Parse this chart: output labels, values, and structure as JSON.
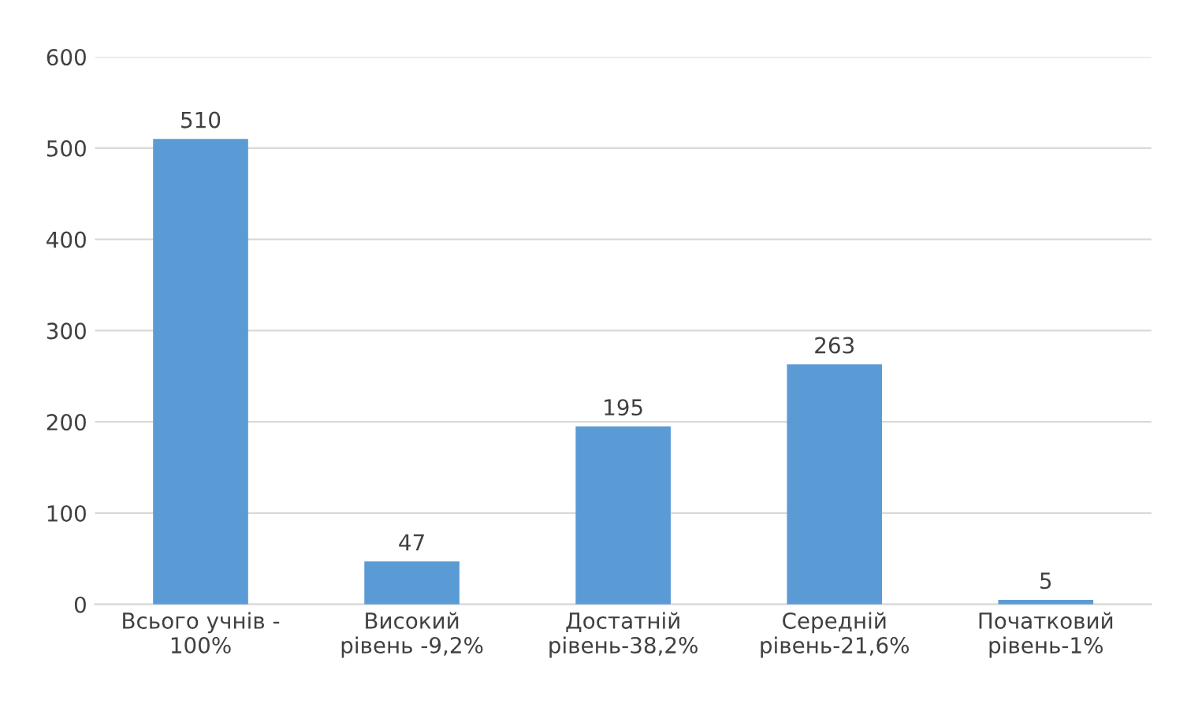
{
  "chart_data": {
    "type": "bar",
    "categories": [
      "Всього учнів -\n100%",
      "Високий\nрівень -9,2%",
      "Достатній\nрівень-38,2%",
      "Середній\nрівень-21,6%",
      "Початковий\nрівень-1%"
    ],
    "values": [
      510,
      47,
      195,
      263,
      5
    ],
    "color": "#5b9bd5",
    "ylim": [
      0,
      600
    ],
    "yticks": [
      0,
      100,
      200,
      300,
      400,
      500,
      600
    ],
    "grid": "y",
    "data_labels": true,
    "legend": false
  }
}
